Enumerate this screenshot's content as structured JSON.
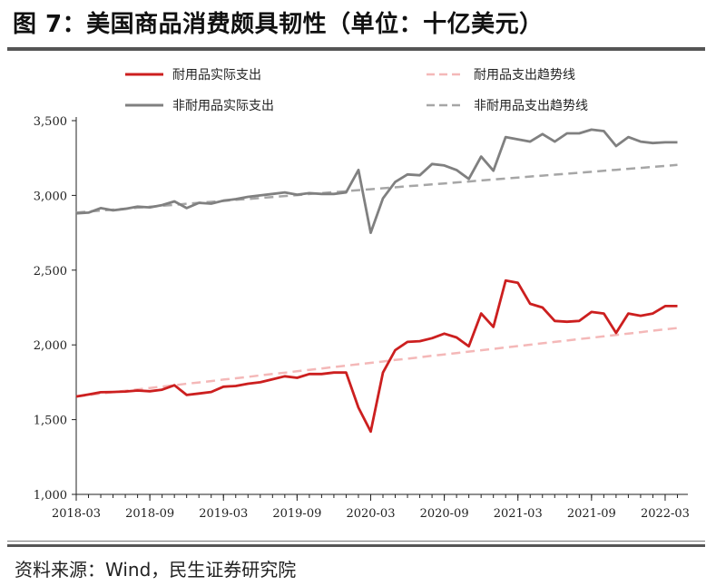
{
  "title": "图 7：美国商品消费颇具韧性（单位：十亿美元）",
  "source": "资料来源：Wind，民生证券研究院",
  "chart_data": {
    "type": "line",
    "title": "图 7：美国商品消费颇具韧性（单位：十亿美元）",
    "xlabel": "",
    "ylabel": "",
    "ylim": [
      1000,
      3500
    ],
    "yticks": [
      "1,000",
      "1,500",
      "2,000",
      "2,500",
      "3,000",
      "3,500"
    ],
    "ytick_values": [
      1000,
      1500,
      2000,
      2500,
      3000,
      3500
    ],
    "xticks": [
      "2018-03",
      "2018-09",
      "2019-03",
      "2019-09",
      "2020-03",
      "2020-09",
      "2021-03",
      "2021-09",
      "2022-03"
    ],
    "x": [
      "2018-03",
      "2018-04",
      "2018-05",
      "2018-06",
      "2018-07",
      "2018-08",
      "2018-09",
      "2018-10",
      "2018-11",
      "2018-12",
      "2019-01",
      "2019-02",
      "2019-03",
      "2019-04",
      "2019-05",
      "2019-06",
      "2019-07",
      "2019-08",
      "2019-09",
      "2019-10",
      "2019-11",
      "2019-12",
      "2020-01",
      "2020-02",
      "2020-03",
      "2020-04",
      "2020-05",
      "2020-06",
      "2020-07",
      "2020-08",
      "2020-09",
      "2020-10",
      "2020-11",
      "2020-12",
      "2021-01",
      "2021-02",
      "2021-03",
      "2021-04",
      "2021-05",
      "2021-06",
      "2021-07",
      "2021-08",
      "2021-09",
      "2021-10",
      "2021-11",
      "2021-12",
      "2022-01",
      "2022-02",
      "2022-03",
      "2022-04"
    ],
    "grid": false,
    "legend_position": "top",
    "series": [
      {
        "name": "耐用品实际支出",
        "color": "#cc1f1f",
        "style": "solid",
        "values": [
          1655,
          1668,
          1683,
          1685,
          1688,
          1695,
          1690,
          1700,
          1730,
          1665,
          1675,
          1685,
          1720,
          1725,
          1740,
          1750,
          1770,
          1790,
          1780,
          1805,
          1805,
          1815,
          1815,
          1580,
          1420,
          1815,
          1965,
          2020,
          2025,
          2045,
          2075,
          2050,
          1990,
          2210,
          2120,
          2430,
          2415,
          2275,
          2250,
          2160,
          2155,
          2160,
          2220,
          2210,
          2080,
          2210,
          2195,
          2210,
          2260,
          2260
        ]
      },
      {
        "name": "非耐用品实际支出",
        "color": "#808080",
        "style": "solid",
        "values": [
          2880,
          2885,
          2915,
          2900,
          2910,
          2925,
          2920,
          2935,
          2960,
          2915,
          2950,
          2945,
          2965,
          2975,
          2990,
          3000,
          3010,
          3020,
          3005,
          3015,
          3010,
          3010,
          3020,
          3170,
          2750,
          2980,
          3090,
          3140,
          3135,
          3210,
          3200,
          3170,
          3110,
          3260,
          3165,
          3390,
          3375,
          3360,
          3410,
          3360,
          3415,
          3415,
          3440,
          3430,
          3330,
          3390,
          3360,
          3350,
          3355,
          3355
        ]
      },
      {
        "name": "耐用品支出趋势线",
        "color": "#f4b8b8",
        "style": "dashed",
        "values": [
          1655,
          1664,
          1674,
          1684,
          1693,
          1702,
          1712,
          1721,
          1730,
          1740,
          1749,
          1758,
          1768,
          1777,
          1786,
          1796,
          1805,
          1814,
          1824,
          1833,
          1842,
          1852,
          1861,
          1871,
          1880,
          1889,
          1899,
          1908,
          1917,
          1927,
          1936,
          1945,
          1955,
          1964,
          1973,
          1983,
          1992,
          2001,
          2011,
          2020,
          2029,
          2039,
          2048,
          2057,
          2067,
          2076,
          2085,
          2095,
          2104,
          2113
        ]
      },
      {
        "name": "非耐用品支出趋势线",
        "color": "#a6a6a6",
        "style": "dashed",
        "values": [
          2885,
          2892,
          2898,
          2905,
          2911,
          2918,
          2924,
          2931,
          2937,
          2944,
          2950,
          2957,
          2963,
          2970,
          2976,
          2983,
          2989,
          2996,
          3002,
          3009,
          3015,
          3022,
          3028,
          3035,
          3041,
          3048,
          3054,
          3061,
          3067,
          3074,
          3080,
          3087,
          3093,
          3100,
          3106,
          3113,
          3119,
          3126,
          3132,
          3139,
          3145,
          3152,
          3158,
          3165,
          3171,
          3178,
          3184,
          3191,
          3197,
          3204
        ]
      }
    ]
  }
}
